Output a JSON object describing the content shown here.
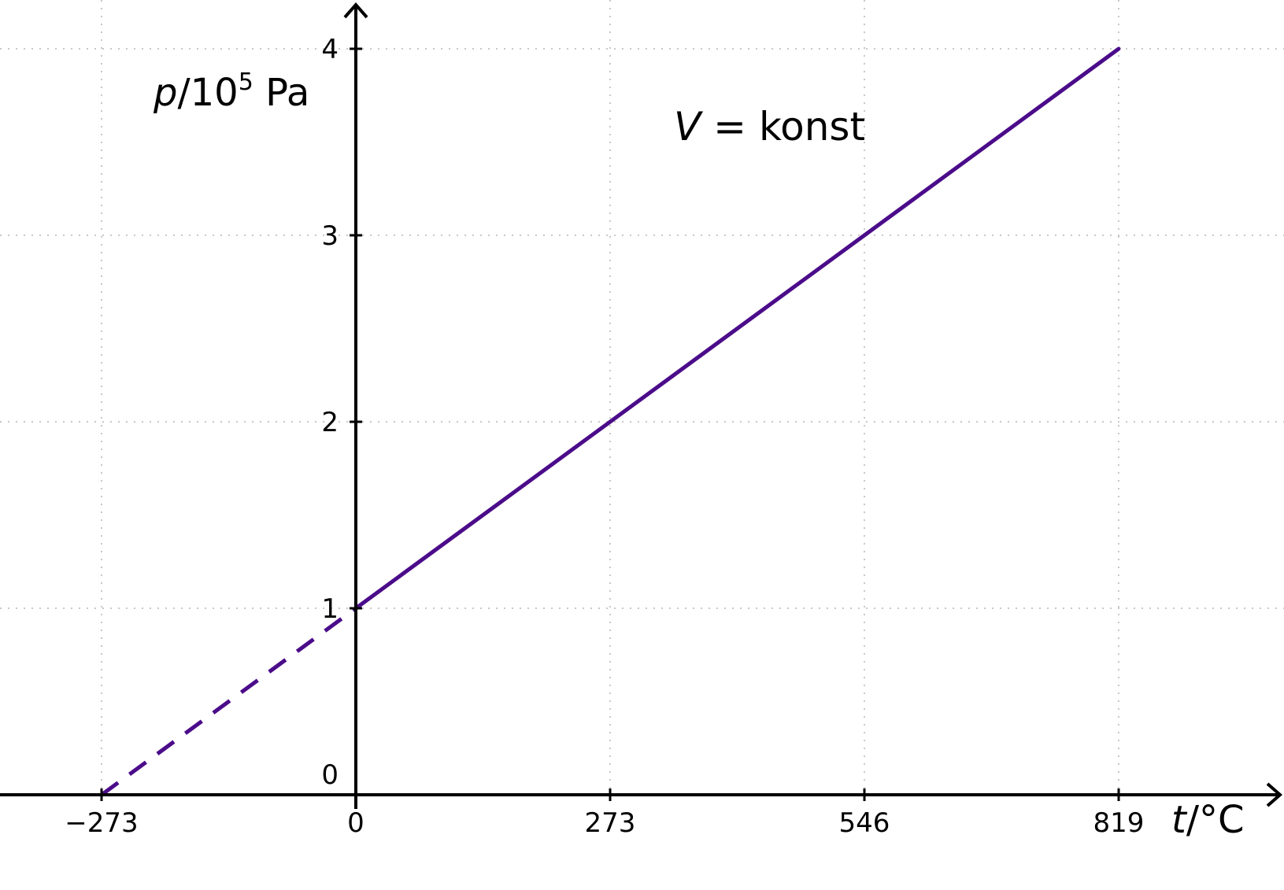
{
  "chart_data": {
    "type": "line",
    "x_axis": {
      "title_var": "t",
      "title_unit": "°C",
      "ticks": [
        -273,
        0,
        273,
        546,
        819
      ],
      "tick_labels": [
        "−273",
        "0",
        "273",
        "546",
        "819"
      ],
      "range": [
        -380,
        1000
      ]
    },
    "y_axis": {
      "title_var": "p",
      "title_base": "10",
      "title_exp": "5",
      "title_unit": "Pa",
      "ticks": [
        0,
        1,
        2,
        3,
        4
      ],
      "tick_labels": [
        "0",
        "1",
        "2",
        "3",
        "4"
      ],
      "range": [
        0,
        4.25
      ]
    },
    "grid": true,
    "annotation": {
      "var": "V",
      "op": "=",
      "text": "konst"
    },
    "series": [
      {
        "style": "solid",
        "color": "#4b0c8a",
        "points": [
          [
            0,
            1
          ],
          [
            819,
            4
          ]
        ]
      },
      {
        "style": "dashed",
        "color": "#4b0c8a",
        "points": [
          [
            -273,
            0
          ],
          [
            0,
            1
          ]
        ]
      }
    ]
  }
}
